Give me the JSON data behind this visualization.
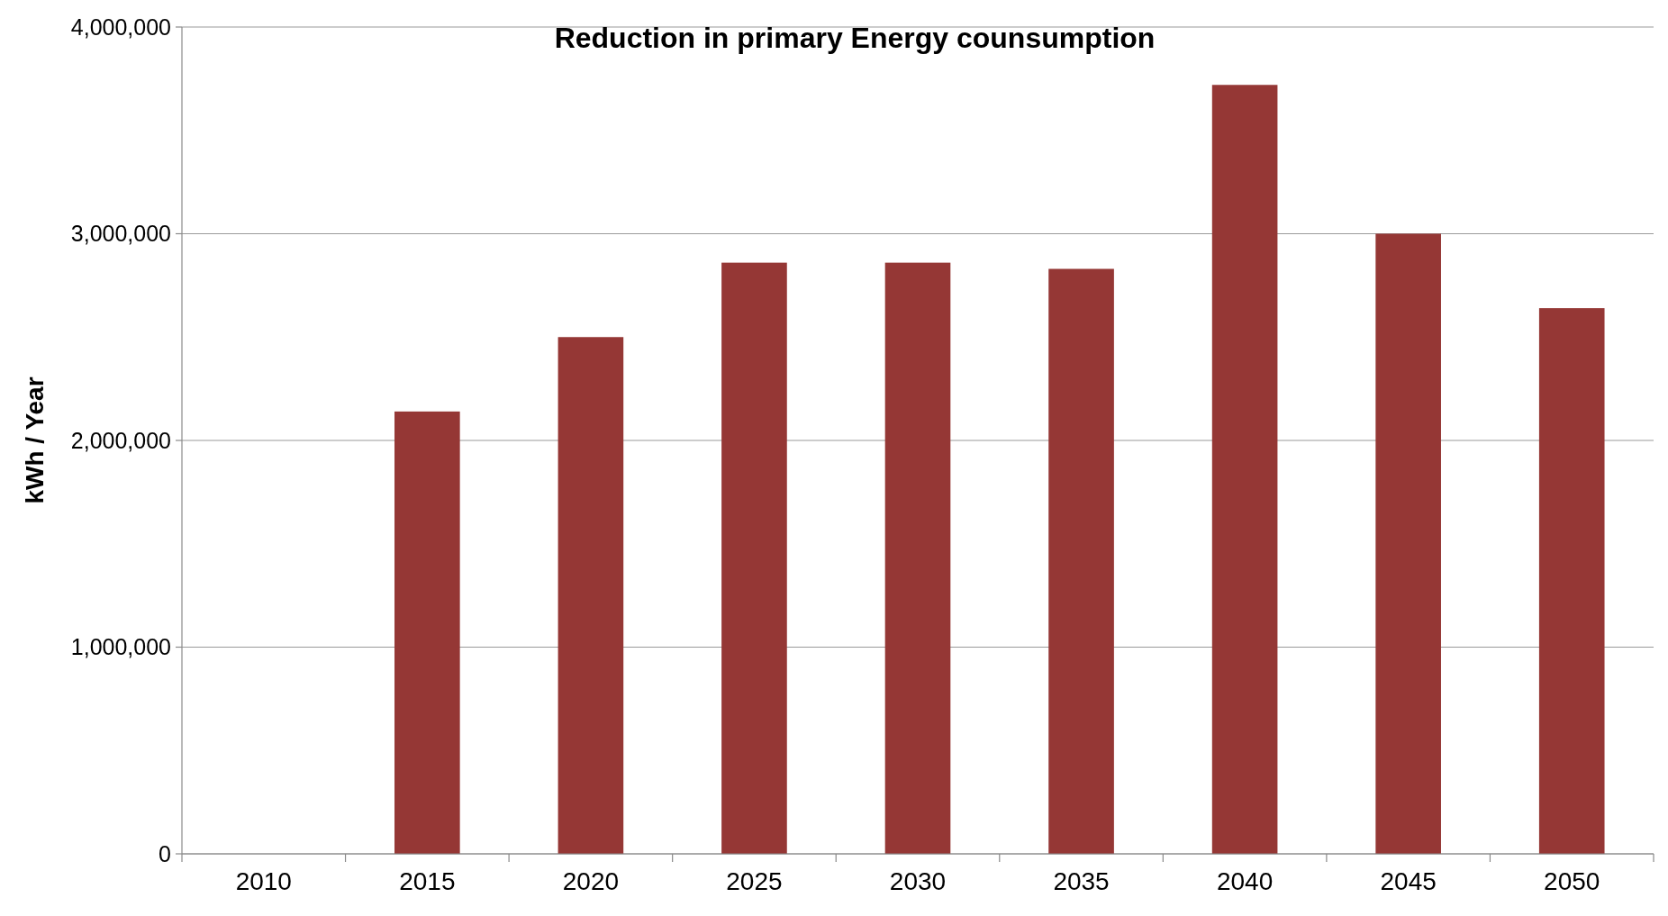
{
  "chart_data": {
    "type": "bar",
    "title": "Reduction in primary Energy counsumption",
    "ylabel": "kWh / Year",
    "categories": [
      "2010",
      "2015",
      "2020",
      "2025",
      "2030",
      "2035",
      "2040",
      "2045",
      "2050"
    ],
    "values": [
      null,
      2140000,
      2500000,
      2860000,
      2860000,
      2830000,
      3720000,
      3000000,
      2640000
    ],
    "color": "#953735",
    "ylim": [
      0,
      4000000
    ],
    "yticks": [
      {
        "value": 0,
        "label": "0"
      },
      {
        "value": 1000000,
        "label": "1,000,000"
      },
      {
        "value": 2000000,
        "label": "2,000,000"
      },
      {
        "value": 3000000,
        "label": "3,000,000"
      },
      {
        "value": 4000000,
        "label": "4,000,000"
      }
    ],
    "grid": "y"
  }
}
